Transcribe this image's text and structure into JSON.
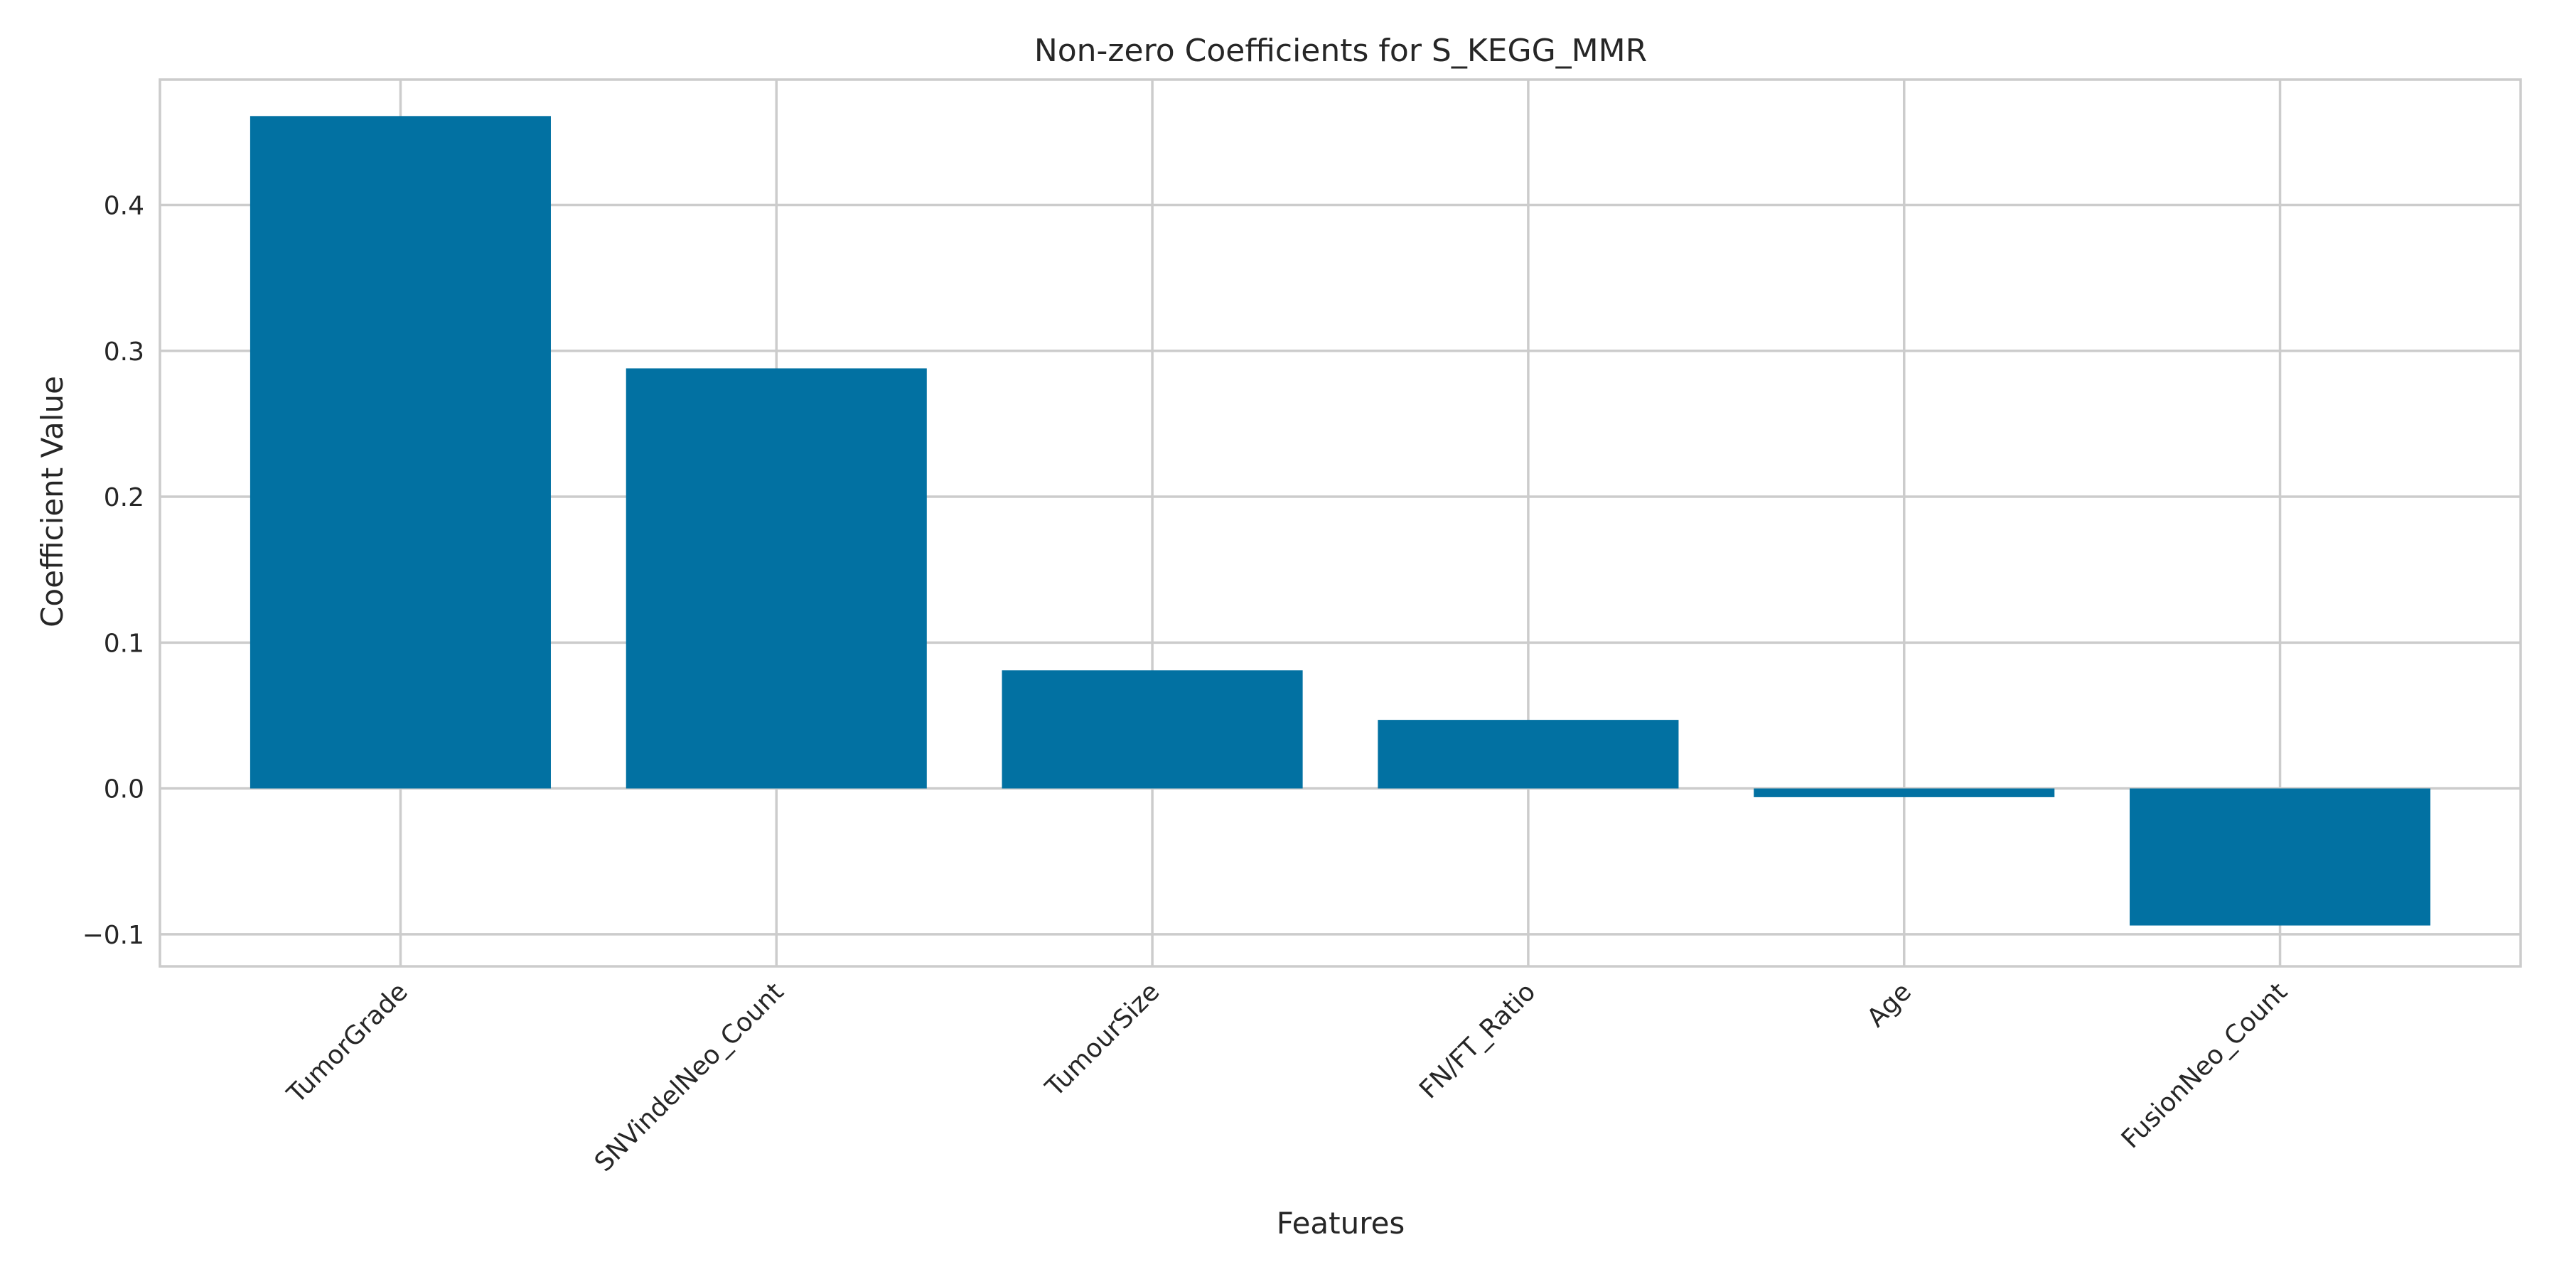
{
  "chart_data": {
    "type": "bar",
    "title": "Non-zero Coefficients for S_KEGG_MMR",
    "xlabel": "Features",
    "ylabel": "Coefficient Value",
    "categories": [
      "TumorGrade",
      "SNVindelNeo_Count",
      "TumourSize",
      "FN/FT_Ratio",
      "Age",
      "FusionNeo_Count"
    ],
    "values": [
      0.461,
      0.288,
      0.081,
      0.047,
      -0.006,
      -0.094
    ],
    "ylim": [
      -0.122,
      0.486
    ],
    "yticks": [
      -0.1,
      0.0,
      0.1,
      0.2,
      0.3,
      0.4
    ],
    "ytick_labels": [
      "−0.1",
      "0.0",
      "0.1",
      "0.2",
      "0.3",
      "0.4"
    ],
    "grid": true,
    "bar_color": "#0271a2",
    "grid_color": "#cccccc"
  }
}
